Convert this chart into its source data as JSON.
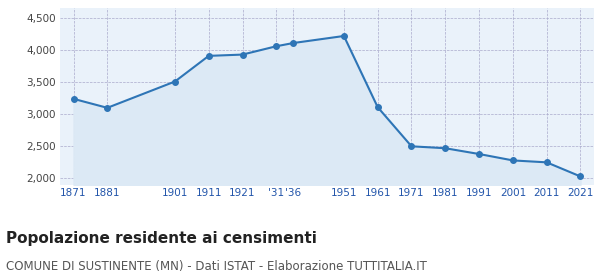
{
  "years": [
    1871,
    1881,
    1901,
    1911,
    1921,
    1931,
    1936,
    1951,
    1961,
    1971,
    1981,
    1991,
    2001,
    2011,
    2021
  ],
  "population": [
    3240,
    3100,
    3510,
    3910,
    3930,
    4060,
    4110,
    4220,
    3110,
    2500,
    2470,
    2380,
    2280,
    2250,
    2030
  ],
  "x_labels": [
    "1871",
    "1881",
    "1901",
    "1911",
    "1921",
    "'31",
    "'36",
    "1951",
    "1961",
    "1971",
    "1981",
    "1991",
    "2001",
    "2011",
    "2021"
  ],
  "line_color": "#2E75B6",
  "fill_color": "#DCE9F5",
  "marker_color": "#2E75B6",
  "background_color": "#FFFFFF",
  "plot_bg_color": "#EAF2FA",
  "grid_color": "#AAAACC",
  "ylim": [
    1900,
    4650
  ],
  "yticks": [
    2000,
    2500,
    3000,
    3500,
    4000,
    4500
  ],
  "title": "Popolazione residente ai censimenti",
  "subtitle": "COMUNE DI SUSTINENTE (MN) - Dati ISTAT - Elaborazione TUTTITALIA.IT",
  "title_fontsize": 11,
  "subtitle_fontsize": 8.5
}
